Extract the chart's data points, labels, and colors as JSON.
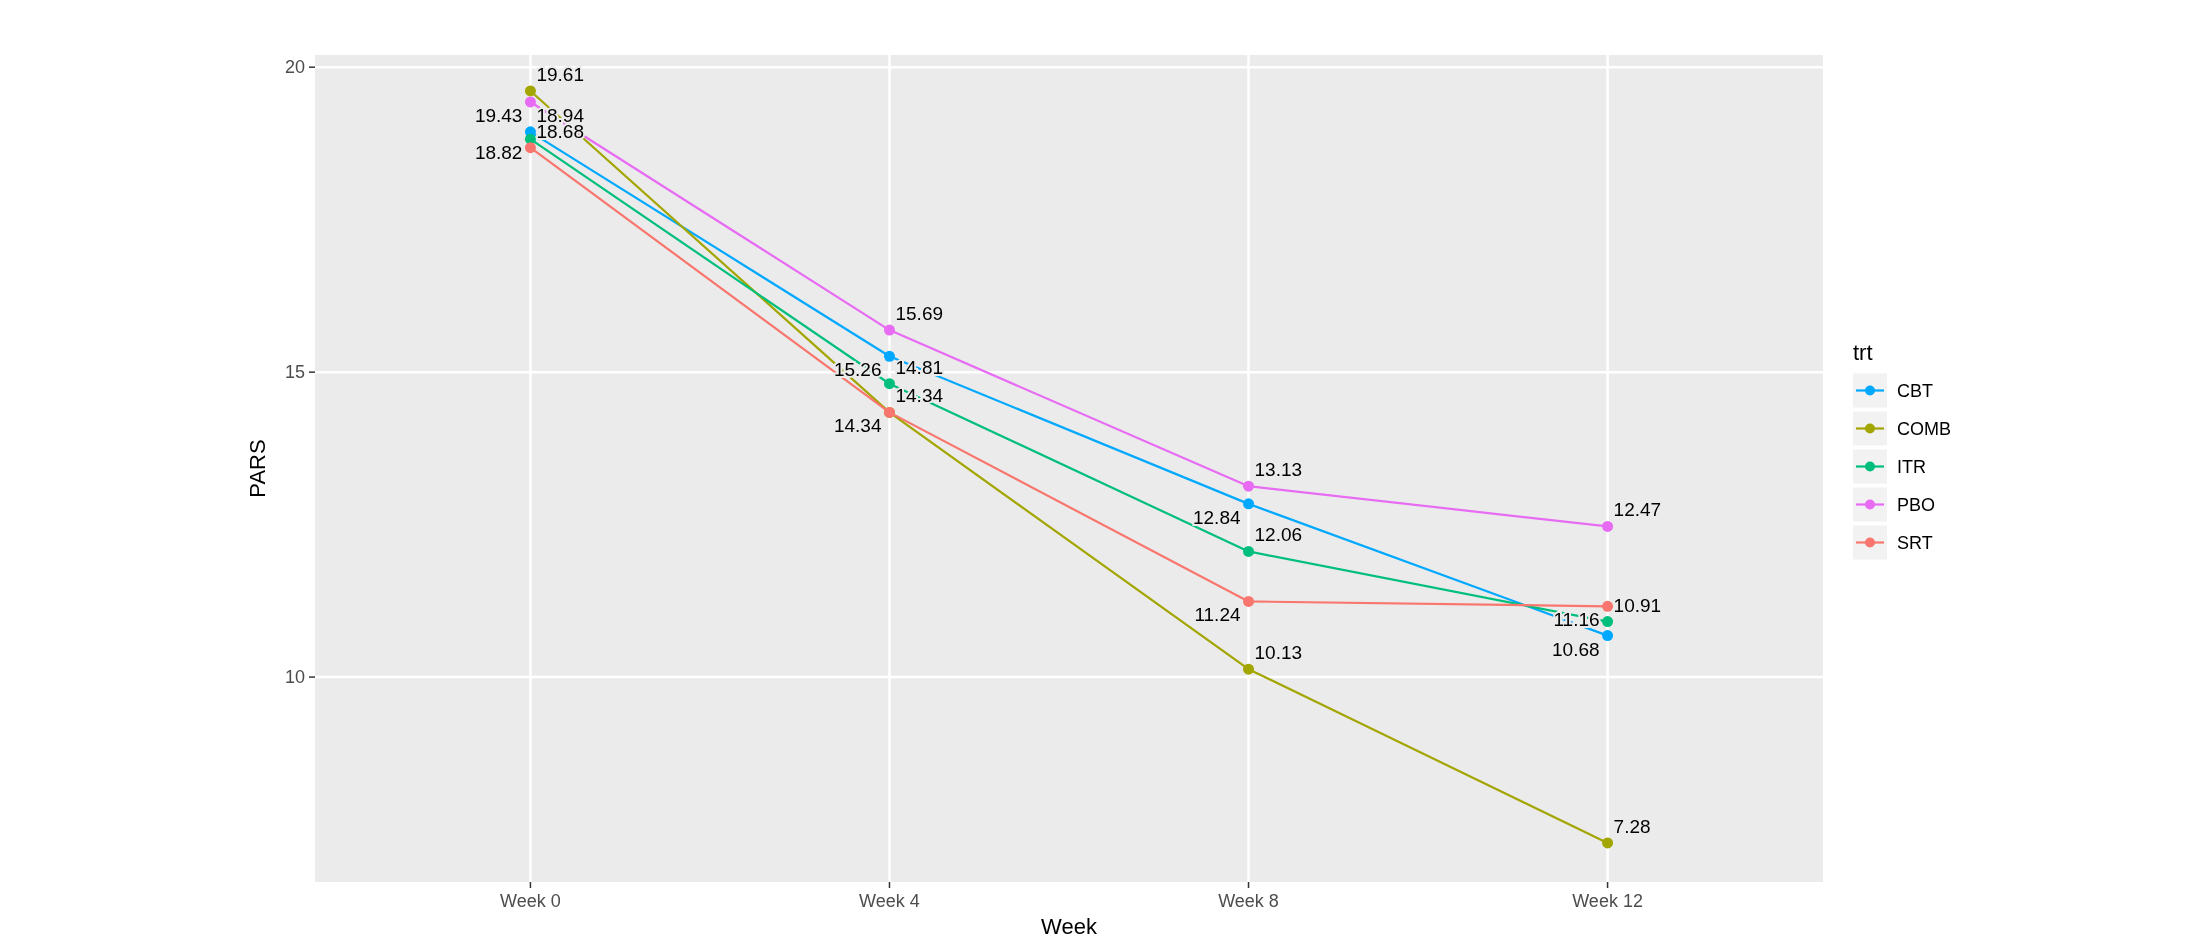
{
  "chart_data": {
    "type": "line",
    "xlabel": "Week",
    "ylabel": "PARS",
    "legend_title": "trt",
    "categories": [
      "Week 0",
      "Week 4",
      "Week 8",
      "Week 12"
    ],
    "series": [
      {
        "name": "CBT",
        "color": "#00a9ff",
        "values": [
          18.94,
          15.26,
          12.84,
          10.68
        ]
      },
      {
        "name": "COMB",
        "color": "#a3a500",
        "values": [
          19.61,
          14.34,
          10.13,
          7.28
        ]
      },
      {
        "name": "ITR",
        "color": "#00bf7d",
        "values": [
          18.82,
          14.81,
          12.06,
          10.91
        ]
      },
      {
        "name": "PBO",
        "color": "#e76bf3",
        "values": [
          19.43,
          15.69,
          13.13,
          12.47
        ]
      },
      {
        "name": "SRT",
        "color": "#f8766d",
        "values": [
          18.68,
          14.34,
          11.24,
          11.16
        ]
      }
    ],
    "ylim": [
      6.64,
      20.2
    ],
    "yticks": [
      10,
      15,
      20
    ],
    "grid": true,
    "legend": "right",
    "marker": "circle",
    "data_labels": true
  }
}
